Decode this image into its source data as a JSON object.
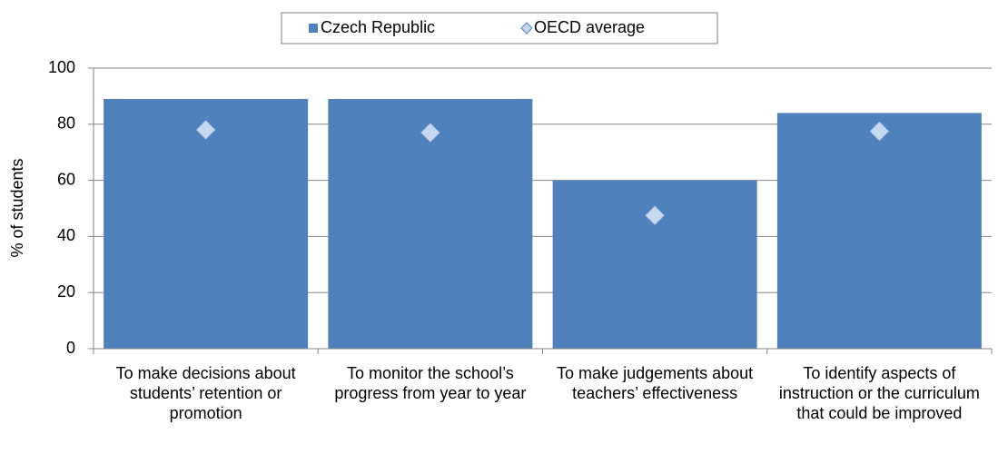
{
  "chart_data": {
    "type": "bar",
    "categories": [
      "To make decisions about students’ retention or promotion",
      "To monitor the school’s progress from year to year",
      "To make judgements about teachers’ effectiveness",
      "To identify aspects of instruction or the curriculum that could be improved"
    ],
    "series": [
      {
        "name": "Czech Republic",
        "type": "bar",
        "color": "#4f81bd",
        "values": [
          89,
          89,
          60,
          84
        ]
      },
      {
        "name": "OECD average",
        "type": "scatter",
        "color": "#c6d9f1",
        "values": [
          78,
          77,
          47.5,
          77.5
        ]
      }
    ],
    "y_label": "% of students",
    "ylim": [
      0,
      100
    ],
    "yticks": [
      0,
      20,
      40,
      60,
      80,
      100
    ],
    "grid": true,
    "legend": "top"
  }
}
